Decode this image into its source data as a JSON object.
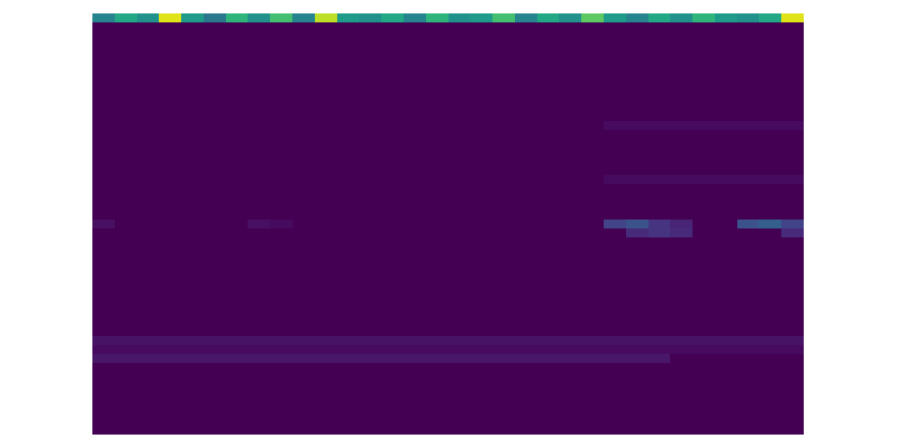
{
  "chart_data": {
    "type": "heatmap",
    "tick_labels": false,
    "color_range": [
      0,
      1
    ],
    "cells": [
      [
        0.45,
        0.6,
        0.5,
        0.95,
        0.55,
        0.4,
        0.65,
        0.5,
        0.7,
        0.45,
        0.9,
        0.55,
        0.5,
        0.6,
        0.45,
        0.65,
        0.5,
        0.55,
        0.7,
        0.45,
        0.6,
        0.5,
        0.75,
        0.55,
        0.45,
        0.6,
        0.5,
        0.65,
        0.55,
        0.5,
        0.6,
        0.95
      ],
      [
        0,
        0,
        0,
        0,
        0,
        0,
        0,
        0,
        0,
        0,
        0,
        0,
        0,
        0,
        0,
        0,
        0,
        0,
        0,
        0,
        0,
        0,
        0,
        0,
        0,
        0,
        0,
        0,
        0,
        0,
        0,
        0
      ],
      [
        0,
        0,
        0,
        0,
        0,
        0,
        0,
        0,
        0,
        0,
        0,
        0,
        0,
        0,
        0,
        0,
        0,
        0,
        0,
        0,
        0,
        0,
        0,
        0,
        0,
        0,
        0,
        0,
        0,
        0,
        0,
        0
      ],
      [
        0,
        0,
        0,
        0,
        0,
        0,
        0,
        0,
        0,
        0,
        0,
        0,
        0,
        0,
        0,
        0,
        0,
        0,
        0,
        0,
        0,
        0,
        0,
        0,
        0,
        0,
        0,
        0,
        0,
        0,
        0,
        0
      ],
      [
        0,
        0,
        0,
        0,
        0,
        0,
        0,
        0,
        0,
        0,
        0,
        0,
        0,
        0,
        0,
        0,
        0,
        0,
        0,
        0,
        0,
        0,
        0,
        0,
        0,
        0,
        0,
        0,
        0,
        0,
        0,
        0
      ],
      [
        0,
        0,
        0,
        0,
        0,
        0,
        0,
        0,
        0,
        0,
        0,
        0,
        0,
        0,
        0,
        0,
        0,
        0,
        0,
        0,
        0,
        0,
        0,
        0,
        0,
        0,
        0,
        0,
        0,
        0,
        0,
        0
      ],
      [
        0,
        0,
        0,
        0,
        0,
        0,
        0,
        0,
        0,
        0,
        0,
        0,
        0,
        0,
        0,
        0,
        0,
        0,
        0,
        0,
        0,
        0,
        0,
        0,
        0,
        0,
        0,
        0,
        0,
        0,
        0,
        0
      ],
      [
        0,
        0,
        0,
        0,
        0,
        0,
        0,
        0,
        0,
        0,
        0,
        0,
        0,
        0,
        0,
        0,
        0,
        0,
        0,
        0,
        0,
        0,
        0,
        0,
        0,
        0,
        0,
        0,
        0,
        0,
        0,
        0
      ],
      [
        0,
        0,
        0,
        0,
        0,
        0,
        0,
        0,
        0,
        0,
        0,
        0,
        0,
        0,
        0,
        0,
        0,
        0,
        0,
        0,
        0,
        0,
        0,
        0,
        0,
        0,
        0,
        0,
        0,
        0,
        0,
        0
      ],
      [
        0,
        0,
        0,
        0,
        0,
        0,
        0,
        0,
        0,
        0,
        0,
        0,
        0,
        0,
        0,
        0,
        0,
        0,
        0,
        0,
        0,
        0,
        0,
        0,
        0,
        0,
        0,
        0,
        0,
        0,
        0,
        0
      ],
      [
        0,
        0,
        0,
        0,
        0,
        0,
        0,
        0,
        0,
        0,
        0,
        0,
        0,
        0,
        0,
        0,
        0,
        0,
        0,
        0,
        0,
        0,
        0,
        0,
        0,
        0,
        0,
        0,
        0,
        0,
        0,
        0
      ],
      [
        0,
        0,
        0,
        0,
        0,
        0,
        0,
        0,
        0,
        0,
        0,
        0,
        0,
        0,
        0,
        0,
        0,
        0,
        0,
        0,
        0,
        0,
        0,
        0,
        0,
        0,
        0,
        0,
        0,
        0,
        0,
        0
      ],
      [
        0,
        0,
        0,
        0,
        0,
        0,
        0,
        0,
        0,
        0,
        0,
        0,
        0,
        0,
        0,
        0,
        0,
        0,
        0,
        0,
        0,
        0,
        0,
        0.03,
        0.03,
        0.03,
        0.03,
        0.03,
        0.03,
        0.03,
        0.03,
        0.03
      ],
      [
        0,
        0,
        0,
        0,
        0,
        0,
        0,
        0,
        0,
        0,
        0,
        0,
        0,
        0,
        0,
        0,
        0,
        0,
        0,
        0,
        0,
        0,
        0,
        0,
        0,
        0,
        0,
        0,
        0,
        0,
        0,
        0
      ],
      [
        0,
        0,
        0,
        0,
        0,
        0,
        0,
        0,
        0,
        0,
        0,
        0,
        0,
        0,
        0,
        0,
        0,
        0,
        0,
        0,
        0,
        0,
        0,
        0,
        0,
        0,
        0,
        0,
        0,
        0,
        0,
        0
      ],
      [
        0,
        0,
        0,
        0,
        0,
        0,
        0,
        0,
        0,
        0,
        0,
        0,
        0,
        0,
        0,
        0,
        0,
        0,
        0,
        0,
        0,
        0,
        0,
        0,
        0,
        0,
        0,
        0,
        0,
        0,
        0,
        0
      ],
      [
        0,
        0,
        0,
        0,
        0,
        0,
        0,
        0,
        0,
        0,
        0,
        0,
        0,
        0,
        0,
        0,
        0,
        0,
        0,
        0,
        0,
        0,
        0,
        0,
        0,
        0,
        0,
        0,
        0,
        0,
        0,
        0
      ],
      [
        0,
        0,
        0,
        0,
        0,
        0,
        0,
        0,
        0,
        0,
        0,
        0,
        0,
        0,
        0,
        0,
        0,
        0,
        0,
        0,
        0,
        0,
        0,
        0,
        0,
        0,
        0,
        0,
        0,
        0,
        0,
        0
      ],
      [
        0,
        0,
        0,
        0,
        0,
        0,
        0,
        0,
        0,
        0,
        0,
        0,
        0,
        0,
        0,
        0,
        0,
        0,
        0,
        0,
        0,
        0,
        0,
        0.03,
        0.03,
        0.03,
        0.03,
        0.03,
        0.03,
        0.03,
        0.03,
        0.03
      ],
      [
        0,
        0,
        0,
        0,
        0,
        0,
        0,
        0,
        0,
        0,
        0,
        0,
        0,
        0,
        0,
        0,
        0,
        0,
        0,
        0,
        0,
        0,
        0,
        0,
        0,
        0,
        0,
        0,
        0,
        0,
        0,
        0
      ],
      [
        0,
        0,
        0,
        0,
        0,
        0,
        0,
        0,
        0,
        0,
        0,
        0,
        0,
        0,
        0,
        0,
        0,
        0,
        0,
        0,
        0,
        0,
        0,
        0,
        0,
        0,
        0,
        0,
        0,
        0,
        0,
        0
      ],
      [
        0,
        0,
        0,
        0,
        0,
        0,
        0,
        0,
        0,
        0,
        0,
        0,
        0,
        0,
        0,
        0,
        0,
        0,
        0,
        0,
        0,
        0,
        0,
        0,
        0,
        0,
        0,
        0,
        0,
        0,
        0,
        0
      ],
      [
        0,
        0,
        0,
        0,
        0,
        0,
        0,
        0,
        0,
        0,
        0,
        0,
        0,
        0,
        0,
        0,
        0,
        0,
        0,
        0,
        0,
        0,
        0,
        0,
        0,
        0,
        0,
        0,
        0,
        0,
        0,
        0
      ],
      [
        0.04,
        0,
        0,
        0,
        0,
        0,
        0,
        0.04,
        0.03,
        0,
        0,
        0,
        0,
        0,
        0,
        0,
        0,
        0,
        0,
        0,
        0,
        0,
        0,
        0.2,
        0.25,
        0.15,
        0.1,
        0,
        0,
        0.25,
        0.3,
        0.2
      ],
      [
        0,
        0,
        0,
        0,
        0,
        0,
        0,
        0,
        0,
        0,
        0,
        0,
        0,
        0,
        0,
        0,
        0,
        0,
        0,
        0,
        0,
        0,
        0,
        0,
        0.12,
        0.15,
        0.12,
        0,
        0,
        0,
        0,
        0.12
      ],
      [
        0,
        0,
        0,
        0,
        0,
        0,
        0,
        0,
        0,
        0,
        0,
        0,
        0,
        0,
        0,
        0,
        0,
        0,
        0,
        0,
        0,
        0,
        0,
        0,
        0,
        0,
        0,
        0,
        0,
        0,
        0,
        0
      ],
      [
        0,
        0,
        0,
        0,
        0,
        0,
        0,
        0,
        0,
        0,
        0,
        0,
        0,
        0,
        0,
        0,
        0,
        0,
        0,
        0,
        0,
        0,
        0,
        0,
        0,
        0,
        0,
        0,
        0,
        0,
        0,
        0
      ],
      [
        0,
        0,
        0,
        0,
        0,
        0,
        0,
        0,
        0,
        0,
        0,
        0,
        0,
        0,
        0,
        0,
        0,
        0,
        0,
        0,
        0,
        0,
        0,
        0,
        0,
        0,
        0,
        0,
        0,
        0,
        0,
        0
      ],
      [
        0,
        0,
        0,
        0,
        0,
        0,
        0,
        0,
        0,
        0,
        0,
        0,
        0,
        0,
        0,
        0,
        0,
        0,
        0,
        0,
        0,
        0,
        0,
        0,
        0,
        0,
        0,
        0,
        0,
        0,
        0,
        0
      ],
      [
        0,
        0,
        0,
        0,
        0,
        0,
        0,
        0,
        0,
        0,
        0,
        0,
        0,
        0,
        0,
        0,
        0,
        0,
        0,
        0,
        0,
        0,
        0,
        0,
        0,
        0,
        0,
        0,
        0,
        0,
        0,
        0
      ],
      [
        0,
        0,
        0,
        0,
        0,
        0,
        0,
        0,
        0,
        0,
        0,
        0,
        0,
        0,
        0,
        0,
        0,
        0,
        0,
        0,
        0,
        0,
        0,
        0,
        0,
        0,
        0,
        0,
        0,
        0,
        0,
        0
      ],
      [
        0,
        0,
        0,
        0,
        0,
        0,
        0,
        0,
        0,
        0,
        0,
        0,
        0,
        0,
        0,
        0,
        0,
        0,
        0,
        0,
        0,
        0,
        0,
        0,
        0,
        0,
        0,
        0,
        0,
        0,
        0,
        0
      ],
      [
        0,
        0,
        0,
        0,
        0,
        0,
        0,
        0,
        0,
        0,
        0,
        0,
        0,
        0,
        0,
        0,
        0,
        0,
        0,
        0,
        0,
        0,
        0,
        0,
        0,
        0,
        0,
        0,
        0,
        0,
        0,
        0
      ],
      [
        0,
        0,
        0,
        0,
        0,
        0,
        0,
        0,
        0,
        0,
        0,
        0,
        0,
        0,
        0,
        0,
        0,
        0,
        0,
        0,
        0,
        0,
        0,
        0,
        0,
        0,
        0,
        0,
        0,
        0,
        0,
        0
      ],
      [
        0,
        0,
        0,
        0,
        0,
        0,
        0,
        0,
        0,
        0,
        0,
        0,
        0,
        0,
        0,
        0,
        0,
        0,
        0,
        0,
        0,
        0,
        0,
        0,
        0,
        0,
        0,
        0,
        0,
        0,
        0,
        0
      ],
      [
        0,
        0,
        0,
        0,
        0,
        0,
        0,
        0,
        0,
        0,
        0,
        0,
        0,
        0,
        0,
        0,
        0,
        0,
        0,
        0,
        0,
        0,
        0,
        0,
        0,
        0,
        0,
        0,
        0,
        0,
        0,
        0
      ],
      [
        0.05,
        0.05,
        0.05,
        0.05,
        0.05,
        0.05,
        0.05,
        0.05,
        0.05,
        0.05,
        0.05,
        0.05,
        0.05,
        0.05,
        0.05,
        0.05,
        0.05,
        0.05,
        0.05,
        0.05,
        0.05,
        0.05,
        0.05,
        0.05,
        0.05,
        0.05,
        0.05,
        0.05,
        0.05,
        0.05,
        0.05,
        0.05
      ],
      [
        0.03,
        0.03,
        0.03,
        0.03,
        0.03,
        0.03,
        0.03,
        0.03,
        0.03,
        0.03,
        0.03,
        0.03,
        0.03,
        0.03,
        0.03,
        0.03,
        0.03,
        0.03,
        0.03,
        0.03,
        0.03,
        0.03,
        0.03,
        0.03,
        0.03,
        0.03,
        0.03,
        0.03,
        0.03,
        0.03,
        0.03,
        0.03
      ],
      [
        0.06,
        0.06,
        0.06,
        0.06,
        0.06,
        0.06,
        0.06,
        0.06,
        0.06,
        0.06,
        0.06,
        0.06,
        0.06,
        0.06,
        0.06,
        0.06,
        0.06,
        0.06,
        0.06,
        0.06,
        0.06,
        0.06,
        0.06,
        0.06,
        0.06,
        0.06,
        0,
        0,
        0,
        0,
        0,
        0
      ],
      [
        0,
        0,
        0,
        0,
        0,
        0,
        0,
        0,
        0,
        0,
        0,
        0,
        0,
        0,
        0,
        0,
        0,
        0,
        0,
        0,
        0,
        0,
        0,
        0,
        0,
        0,
        0,
        0,
        0,
        0,
        0,
        0
      ],
      [
        0,
        0,
        0,
        0,
        0,
        0,
        0,
        0,
        0,
        0,
        0,
        0,
        0,
        0,
        0,
        0,
        0,
        0,
        0,
        0,
        0,
        0,
        0,
        0,
        0,
        0,
        0,
        0,
        0,
        0,
        0,
        0
      ],
      [
        0,
        0,
        0,
        0,
        0,
        0,
        0,
        0,
        0,
        0,
        0,
        0,
        0,
        0,
        0,
        0,
        0,
        0,
        0,
        0,
        0,
        0,
        0,
        0,
        0,
        0,
        0,
        0,
        0,
        0,
        0,
        0
      ],
      [
        0,
        0,
        0,
        0,
        0,
        0,
        0,
        0,
        0,
        0,
        0,
        0,
        0,
        0,
        0,
        0,
        0,
        0,
        0,
        0,
        0,
        0,
        0,
        0,
        0,
        0,
        0,
        0,
        0,
        0,
        0,
        0
      ],
      [
        0,
        0,
        0,
        0,
        0,
        0,
        0,
        0,
        0,
        0,
        0,
        0,
        0,
        0,
        0,
        0,
        0,
        0,
        0,
        0,
        0,
        0,
        0,
        0,
        0,
        0,
        0,
        0,
        0,
        0,
        0,
        0
      ],
      [
        0,
        0,
        0,
        0,
        0,
        0,
        0,
        0,
        0,
        0,
        0,
        0,
        0,
        0,
        0,
        0,
        0,
        0,
        0,
        0,
        0,
        0,
        0,
        0,
        0,
        0,
        0,
        0,
        0,
        0,
        0,
        0
      ],
      [
        0,
        0,
        0,
        0,
        0,
        0,
        0,
        0,
        0,
        0,
        0,
        0,
        0,
        0,
        0,
        0,
        0,
        0,
        0,
        0,
        0,
        0,
        0,
        0,
        0,
        0,
        0,
        0,
        0,
        0,
        0,
        0
      ],
      [
        0,
        0,
        0,
        0,
        0,
        0,
        0,
        0,
        0,
        0,
        0,
        0,
        0,
        0,
        0,
        0,
        0,
        0,
        0,
        0,
        0,
        0,
        0,
        0,
        0,
        0,
        0,
        0,
        0,
        0,
        0,
        0
      ]
    ]
  }
}
